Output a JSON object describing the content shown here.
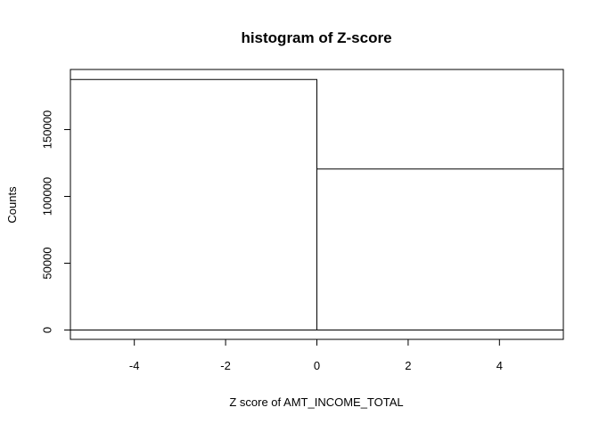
{
  "chart_data": {
    "type": "bar",
    "title": "histogram of Z-score",
    "xlabel": "Z score of AMT_INCOME_TOTAL",
    "ylabel": "Counts",
    "bins": [
      {
        "x_start": -5.4,
        "x_end": 0,
        "count": 187500
      },
      {
        "x_start": 0,
        "x_end": 5.4,
        "count": 120500
      }
    ],
    "xlim": [
      -5.4,
      5.4
    ],
    "ylim": [
      -7000,
      195000
    ],
    "x_ticks": [
      -4,
      -2,
      0,
      2,
      4
    ],
    "x_tick_labels": [
      "-4",
      "-2",
      "0",
      "2",
      "4"
    ],
    "y_ticks": [
      0,
      50000,
      100000,
      150000
    ],
    "y_tick_labels": [
      "0",
      "50000",
      "100000",
      "150000"
    ],
    "grid": false,
    "legend": "none"
  }
}
